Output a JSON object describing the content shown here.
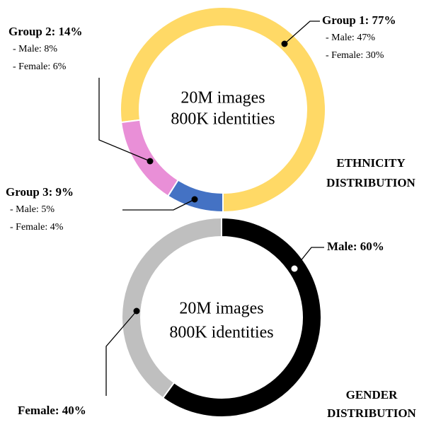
{
  "chart_data": [
    {
      "type": "donut",
      "title": [
        "ETHNICITY",
        "DISTRIBUTION"
      ],
      "center_text": [
        "20M images",
        "800K identities"
      ],
      "values": [
        77,
        14,
        9
      ],
      "value_labels": [
        "Group 1: 77%",
        "Group 2: 14%",
        "Group 3: 9%"
      ],
      "details": [
        [
          "- Male: 47%",
          "- Female: 30%"
        ],
        [
          "- Male: 8%",
          "- Female: 6%"
        ],
        [
          "- Male: 5%",
          "- Female: 4%"
        ]
      ],
      "colors": [
        "#ffd966",
        "#e98fd7",
        "#4472c4"
      ]
    },
    {
      "type": "donut",
      "title": [
        "GENDER",
        "DISTRIBUTION"
      ],
      "center_text": [
        "20M images",
        "800K identities"
      ],
      "values": [
        60,
        40
      ],
      "value_labels": [
        "Male: 60%",
        "Female: 40%"
      ],
      "colors": [
        "#000000",
        "#bfbfbf"
      ]
    }
  ]
}
